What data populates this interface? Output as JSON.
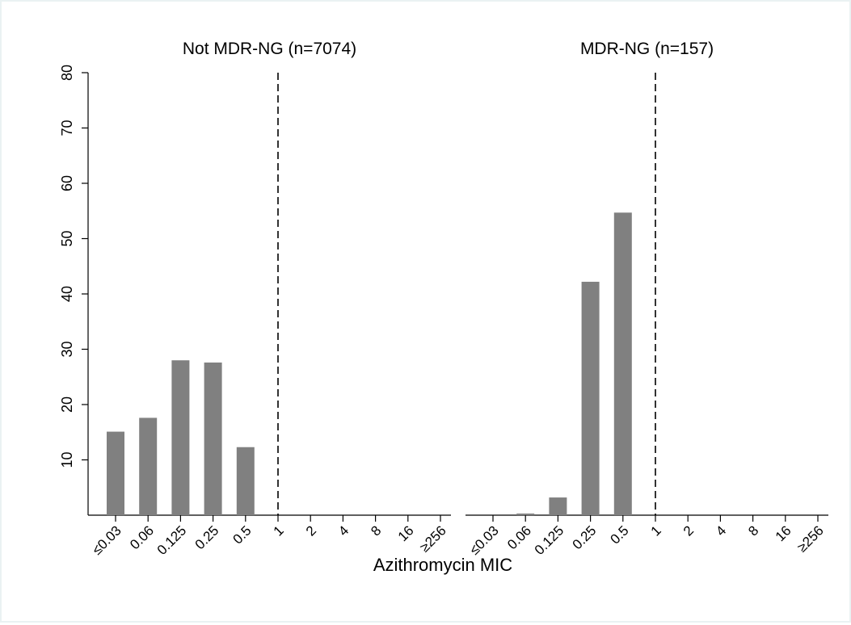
{
  "chart_data": {
    "type": "bar",
    "xlabel": "Azithromycin MIC",
    "ylabel": "",
    "ylim": [
      0,
      80
    ],
    "yticks": [
      10,
      20,
      30,
      40,
      50,
      60,
      70,
      80
    ],
    "categories": [
      "≤0.03",
      "0.06",
      "0.125",
      "0.25",
      "0.5",
      "1",
      "2",
      "4",
      "8",
      "16",
      "≥256"
    ],
    "bar_color": "#808080",
    "reference_line": {
      "category": "1",
      "style": "dashed"
    },
    "panels": [
      {
        "title": "Not MDR-NG (n=7074)",
        "values": [
          15.1,
          17.6,
          28.0,
          27.6,
          12.3,
          0,
          0,
          0,
          0,
          0,
          0
        ]
      },
      {
        "title": "MDR-NG (n=157)",
        "values": [
          0,
          0.3,
          3.2,
          42.2,
          54.7,
          0,
          0,
          0,
          0,
          0,
          0
        ]
      }
    ]
  }
}
